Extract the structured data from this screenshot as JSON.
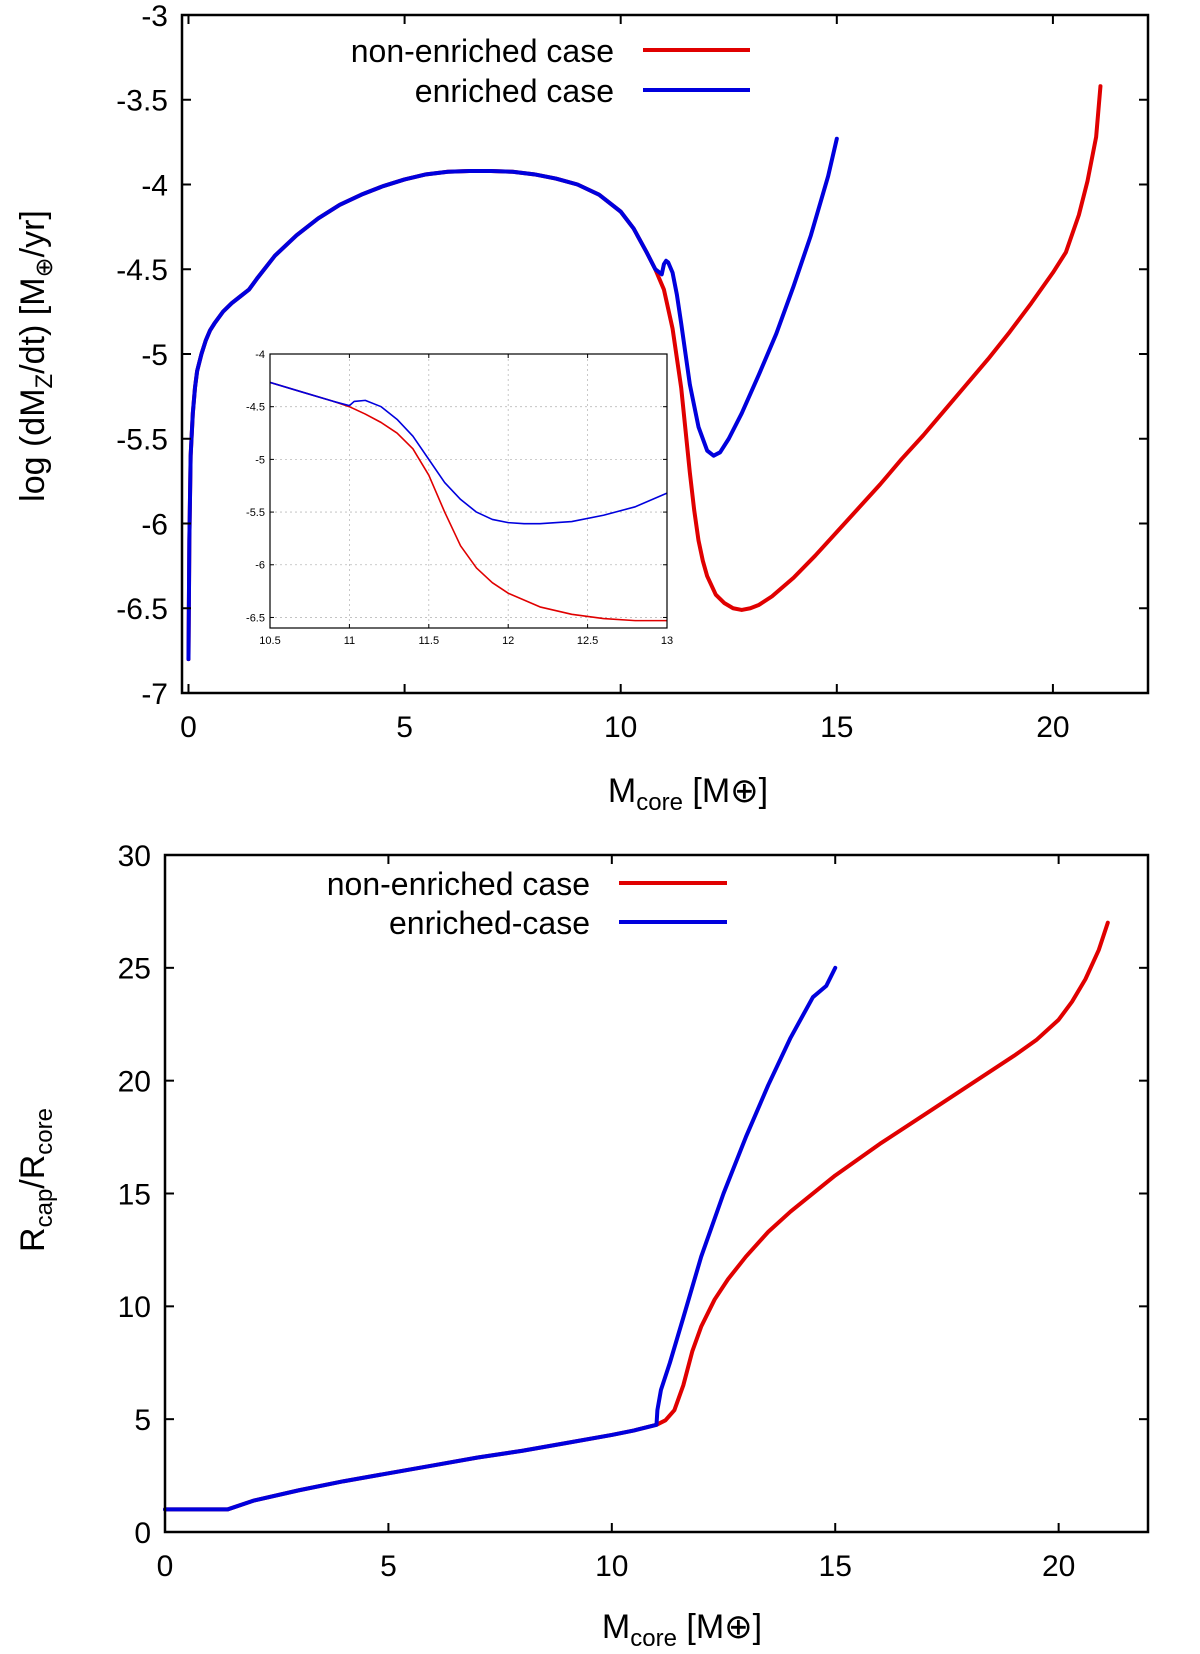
{
  "colors": {
    "non_enriched": "#e00000",
    "enriched": "#0000dd",
    "grid": "#bbbbbb",
    "axis": "#000000"
  },
  "chart_data": [
    {
      "type": "line",
      "id": "top",
      "xlabel": {
        "main": "M",
        "sub": "core",
        "unit": " [M⊕]"
      },
      "ylabel": {
        "pre": "log (dM",
        "sub": "Z",
        "mid": "/dt) [M",
        "sub2": "⊕",
        "post": "/yr]"
      },
      "xlim": [
        -0.15,
        22.2
      ],
      "ylim": [
        -7,
        -3
      ],
      "xticks": [
        0,
        5,
        10,
        15,
        20
      ],
      "yticks": [
        -7,
        -6.5,
        -6,
        -5.5,
        -5,
        -4.5,
        -4,
        -3.5,
        -3
      ],
      "legend": {
        "position": "top-right"
      },
      "series": [
        {
          "name": "non-enriched case",
          "color_key": "non_enriched",
          "x": [
            0.0,
            0.02,
            0.05,
            0.1,
            0.15,
            0.2,
            0.3,
            0.4,
            0.5,
            0.6,
            0.8,
            1.0,
            1.2,
            1.4,
            1.6,
            2.0,
            2.5,
            3.0,
            3.5,
            4.0,
            4.5,
            5.0,
            5.5,
            6.0,
            6.5,
            7.0,
            7.5,
            8.0,
            8.5,
            9.0,
            9.5,
            10.0,
            10.3,
            10.6,
            10.8,
            11.0,
            11.2,
            11.4,
            11.5,
            11.6,
            11.7,
            11.8,
            11.9,
            12.0,
            12.2,
            12.4,
            12.6,
            12.8,
            13.0,
            13.2,
            13.5,
            14.0,
            14.5,
            15.0,
            15.5,
            16.0,
            16.5,
            17.0,
            17.5,
            18.0,
            18.5,
            19.0,
            19.5,
            20.0,
            20.3,
            20.6,
            20.8,
            21.0,
            21.1
          ],
          "y": [
            -6.8,
            -6.1,
            -5.6,
            -5.35,
            -5.2,
            -5.1,
            -5.0,
            -4.92,
            -4.86,
            -4.82,
            -4.75,
            -4.7,
            -4.66,
            -4.62,
            -4.55,
            -4.42,
            -4.3,
            -4.2,
            -4.12,
            -4.06,
            -4.01,
            -3.97,
            -3.94,
            -3.925,
            -3.92,
            -3.92,
            -3.925,
            -3.94,
            -3.965,
            -4.0,
            -4.06,
            -4.16,
            -4.26,
            -4.4,
            -4.5,
            -4.62,
            -4.85,
            -5.2,
            -5.45,
            -5.7,
            -5.92,
            -6.1,
            -6.22,
            -6.31,
            -6.42,
            -6.47,
            -6.5,
            -6.51,
            -6.5,
            -6.48,
            -6.43,
            -6.32,
            -6.19,
            -6.05,
            -5.91,
            -5.77,
            -5.62,
            -5.48,
            -5.33,
            -5.18,
            -5.03,
            -4.87,
            -4.7,
            -4.52,
            -4.4,
            -4.18,
            -3.98,
            -3.72,
            -3.42
          ]
        },
        {
          "name": "enriched case",
          "color_key": "enriched",
          "x": [
            0.0,
            0.02,
            0.05,
            0.1,
            0.15,
            0.2,
            0.3,
            0.4,
            0.5,
            0.6,
            0.8,
            1.0,
            1.2,
            1.4,
            1.6,
            2.0,
            2.5,
            3.0,
            3.5,
            4.0,
            4.5,
            5.0,
            5.5,
            6.0,
            6.5,
            7.0,
            7.5,
            8.0,
            8.5,
            9.0,
            9.5,
            10.0,
            10.3,
            10.6,
            10.8,
            10.95,
            11.0,
            11.05,
            11.1,
            11.2,
            11.3,
            11.4,
            11.5,
            11.6,
            11.8,
            12.0,
            12.15,
            12.3,
            12.5,
            12.8,
            13.2,
            13.6,
            14.0,
            14.4,
            14.8,
            15.0
          ],
          "y": [
            -6.8,
            -6.1,
            -5.6,
            -5.35,
            -5.2,
            -5.1,
            -5.0,
            -4.92,
            -4.86,
            -4.82,
            -4.75,
            -4.7,
            -4.66,
            -4.62,
            -4.55,
            -4.42,
            -4.3,
            -4.2,
            -4.12,
            -4.06,
            -4.01,
            -3.97,
            -3.94,
            -3.925,
            -3.92,
            -3.92,
            -3.925,
            -3.94,
            -3.965,
            -4.0,
            -4.06,
            -4.16,
            -4.26,
            -4.4,
            -4.5,
            -4.53,
            -4.47,
            -4.45,
            -4.46,
            -4.52,
            -4.65,
            -4.82,
            -5.0,
            -5.18,
            -5.43,
            -5.57,
            -5.6,
            -5.58,
            -5.5,
            -5.35,
            -5.12,
            -4.88,
            -4.6,
            -4.3,
            -3.95,
            -3.73
          ]
        }
      ]
    },
    {
      "type": "line",
      "id": "inset",
      "xlim": [
        10.5,
        13
      ],
      "ylim": [
        -6.6,
        -4
      ],
      "xticks": [
        10.5,
        11,
        11.5,
        12,
        12.5,
        13
      ],
      "yticks": [
        -6.5,
        -6,
        -5.5,
        -5,
        -4.5,
        -4
      ],
      "grid": true,
      "series": [
        {
          "name": "non-enriched case",
          "color_key": "non_enriched",
          "x": [
            10.5,
            10.7,
            10.9,
            11.0,
            11.1,
            11.2,
            11.3,
            11.4,
            11.5,
            11.6,
            11.7,
            11.8,
            11.9,
            12.0,
            12.2,
            12.4,
            12.6,
            12.8,
            13.0
          ],
          "y": [
            -4.27,
            -4.36,
            -4.45,
            -4.5,
            -4.57,
            -4.65,
            -4.75,
            -4.9,
            -5.15,
            -5.5,
            -5.82,
            -6.03,
            -6.17,
            -6.27,
            -6.4,
            -6.47,
            -6.51,
            -6.53,
            -6.53
          ]
        },
        {
          "name": "enriched case",
          "color_key": "enriched",
          "x": [
            10.5,
            10.7,
            10.9,
            11.0,
            11.03,
            11.1,
            11.2,
            11.3,
            11.4,
            11.5,
            11.6,
            11.7,
            11.8,
            11.9,
            12.0,
            12.1,
            12.2,
            12.4,
            12.6,
            12.8,
            13.0
          ],
          "y": [
            -4.27,
            -4.36,
            -4.45,
            -4.49,
            -4.45,
            -4.44,
            -4.5,
            -4.62,
            -4.78,
            -5.0,
            -5.22,
            -5.38,
            -5.5,
            -5.57,
            -5.6,
            -5.61,
            -5.61,
            -5.59,
            -5.53,
            -5.45,
            -5.32
          ]
        }
      ]
    },
    {
      "type": "line",
      "id": "bottom",
      "xlabel": {
        "main": "M",
        "sub": "core",
        "unit": " [M⊕]"
      },
      "ylabel": {
        "pre": "R",
        "sub": "cap",
        "mid": "/R",
        "sub2": "core",
        "post": ""
      },
      "xlim": [
        0,
        22
      ],
      "ylim": [
        0,
        30
      ],
      "xticks": [
        0,
        5,
        10,
        15,
        20
      ],
      "yticks": [
        0,
        5,
        10,
        15,
        20,
        25,
        30
      ],
      "legend": {
        "position": "top-right"
      },
      "series": [
        {
          "name": "non-enriched case",
          "color_key": "non_enriched",
          "x": [
            0,
            0.5,
            1.0,
            1.4,
            2.0,
            3.0,
            4.0,
            5.0,
            6.0,
            7.0,
            8.0,
            9.0,
            10.0,
            10.5,
            11.0,
            11.2,
            11.4,
            11.6,
            11.8,
            12.0,
            12.3,
            12.6,
            13.0,
            13.5,
            14.0,
            15.0,
            16.0,
            17.0,
            18.0,
            19.0,
            19.5,
            20.0,
            20.3,
            20.6,
            20.9,
            21.1
          ],
          "y": [
            1.0,
            1.0,
            1.0,
            1.0,
            1.4,
            1.85,
            2.25,
            2.6,
            2.95,
            3.3,
            3.6,
            3.95,
            4.3,
            4.5,
            4.75,
            4.95,
            5.4,
            6.5,
            8.0,
            9.1,
            10.3,
            11.2,
            12.2,
            13.3,
            14.2,
            15.8,
            17.2,
            18.5,
            19.8,
            21.1,
            21.8,
            22.7,
            23.5,
            24.5,
            25.8,
            27.0
          ]
        },
        {
          "name": "enriched-case",
          "color_key": "enriched",
          "x": [
            0,
            0.5,
            1.0,
            1.4,
            2.0,
            3.0,
            4.0,
            5.0,
            6.0,
            7.0,
            8.0,
            9.0,
            10.0,
            10.5,
            11.0,
            11.02,
            11.1,
            11.3,
            11.6,
            12.0,
            12.5,
            13.0,
            13.5,
            14.0,
            14.5,
            14.8,
            15.0
          ],
          "y": [
            1.0,
            1.0,
            1.0,
            1.0,
            1.4,
            1.85,
            2.25,
            2.6,
            2.95,
            3.3,
            3.6,
            3.95,
            4.3,
            4.5,
            4.75,
            5.4,
            6.3,
            7.5,
            9.5,
            12.2,
            15.0,
            17.5,
            19.8,
            21.9,
            23.7,
            24.2,
            25.0
          ]
        }
      ]
    }
  ]
}
